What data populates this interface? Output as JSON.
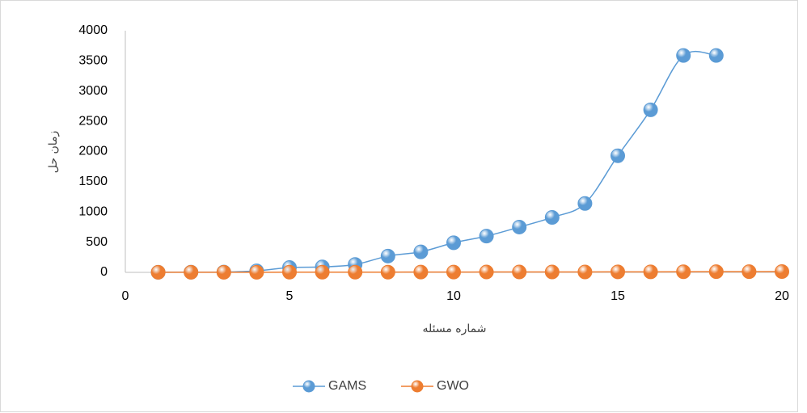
{
  "chart_data": {
    "type": "line",
    "smooth": true,
    "y_label": "زمان حل",
    "x_label": "شماره مسئله",
    "xlim": [
      0,
      20
    ],
    "xticks": [
      0,
      5,
      10,
      15,
      20
    ],
    "ylim": [
      0,
      4000
    ],
    "yticks": [
      0,
      500,
      1000,
      1500,
      2000,
      2500,
      3000,
      3500,
      4000
    ],
    "grid": false,
    "legend": "bottom",
    "series": [
      {
        "name": "GAMS",
        "color": "#5b9bd5",
        "x": [
          1,
          2,
          3,
          4,
          5,
          6,
          7,
          8,
          9,
          10,
          11,
          12,
          13,
          14,
          15,
          16,
          17,
          18
        ],
        "values": [
          2,
          3,
          5,
          25,
          80,
          90,
          130,
          270,
          340,
          490,
          600,
          750,
          910,
          1140,
          1930,
          2690,
          3590,
          3590
        ]
      },
      {
        "name": "GWO",
        "color": "#ed7d31",
        "x": [
          1,
          2,
          3,
          4,
          5,
          6,
          7,
          8,
          9,
          10,
          11,
          12,
          13,
          14,
          15,
          16,
          17,
          18,
          19,
          20
        ],
        "values": [
          1,
          1,
          2,
          2,
          3,
          3,
          4,
          4,
          5,
          5,
          6,
          6,
          7,
          7,
          8,
          9,
          10,
          11,
          12,
          13
        ]
      }
    ]
  }
}
